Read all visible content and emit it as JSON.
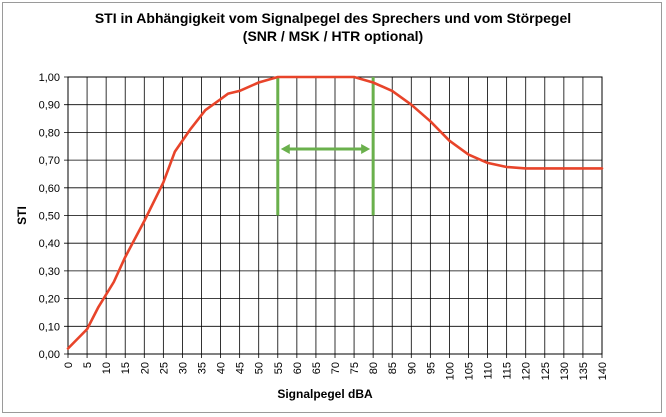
{
  "title": "STI in Abhängigkeit vom Signalpegel des Sprechers und vom Störpegel",
  "subtitle": "(SNR / MSK / HTR optional)",
  "chart_data": {
    "type": "line",
    "title": "STI in Abhängigkeit vom Signalpegel des Sprechers und vom Störpegel",
    "subtitle": "(SNR / MSK / HTR optional)",
    "xlabel": "Signalpegel dBA",
    "ylabel": "STI",
    "xlim": [
      0,
      140
    ],
    "ylim": [
      0,
      1
    ],
    "xticks": [
      "0",
      "5",
      "10",
      "15",
      "20",
      "25",
      "30",
      "35",
      "40",
      "45",
      "50",
      "55",
      "60",
      "65",
      "70",
      "75",
      "80",
      "85",
      "90",
      "95",
      "100",
      "105",
      "110",
      "115",
      "120",
      "125",
      "130",
      "135",
      "140"
    ],
    "yticks": [
      "0,00",
      "0,10",
      "0,20",
      "0,30",
      "0,40",
      "0,50",
      "0,60",
      "0,70",
      "0,80",
      "0,90",
      "1,00"
    ],
    "grid": true,
    "legend": "none",
    "series": [
      {
        "color": "#e8442a",
        "x": [
          0,
          5,
          8,
          12,
          15,
          20,
          25,
          28,
          32,
          36,
          40,
          42,
          45,
          50,
          55,
          60,
          65,
          70,
          75,
          80,
          85,
          90,
          95,
          100,
          105,
          110,
          115,
          120,
          125,
          130,
          135,
          140
        ],
        "y": [
          0.02,
          0.09,
          0.17,
          0.26,
          0.35,
          0.48,
          0.62,
          0.73,
          0.81,
          0.88,
          0.92,
          0.94,
          0.95,
          0.98,
          1.0,
          1.0,
          1.0,
          1.0,
          1.0,
          0.98,
          0.95,
          0.9,
          0.84,
          0.77,
          0.72,
          0.69,
          0.675,
          0.67,
          0.67,
          0.67,
          0.67,
          0.67
        ]
      }
    ],
    "annotations": {
      "color": "#6ab04c",
      "vlines": [
        {
          "x": 55,
          "y0": 0.5,
          "y1": 1.0
        },
        {
          "x": 80,
          "y0": 0.5,
          "y1": 1.0
        }
      ],
      "arrow": {
        "x0": 55,
        "x1": 80,
        "y": 0.74
      }
    }
  }
}
